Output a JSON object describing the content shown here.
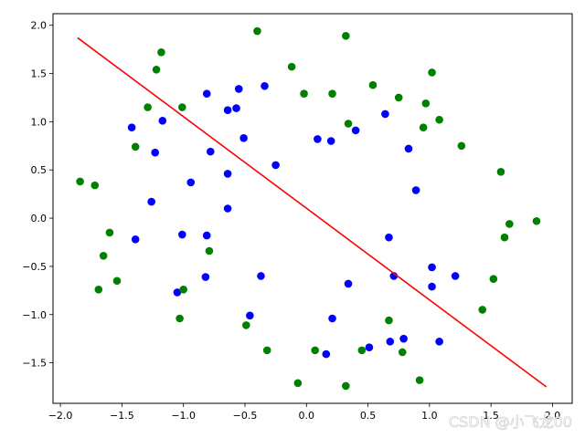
{
  "chart_data": {
    "type": "scatter",
    "xlim": [
      -2.06,
      2.16
    ],
    "ylim": [
      -1.92,
      2.12
    ],
    "grid": false,
    "xticks": [
      {
        "value": -2.0,
        "label": "−2.0"
      },
      {
        "value": -1.5,
        "label": "−1.5"
      },
      {
        "value": -1.0,
        "label": "−1.0"
      },
      {
        "value": -0.5,
        "label": "−0.5"
      },
      {
        "value": 0.0,
        "label": "0.0"
      },
      {
        "value": 0.5,
        "label": "0.5"
      },
      {
        "value": 1.0,
        "label": "1.0"
      },
      {
        "value": 1.5,
        "label": "1.5"
      },
      {
        "value": 2.0,
        "label": "2.0"
      }
    ],
    "yticks": [
      {
        "value": -1.5,
        "label": "−1.5"
      },
      {
        "value": -1.0,
        "label": "−1.0"
      },
      {
        "value": -0.5,
        "label": "−0.5"
      },
      {
        "value": 0.0,
        "label": "0.0"
      },
      {
        "value": 0.5,
        "label": "0.5"
      },
      {
        "value": 1.0,
        "label": "1.0"
      },
      {
        "value": 1.5,
        "label": "1.5"
      },
      {
        "value": 2.0,
        "label": "2.0"
      }
    ],
    "series": [
      {
        "color": "#0000ff",
        "marker": "circle",
        "points": [
          [
            -1.42,
            0.94
          ],
          [
            -1.17,
            1.01
          ],
          [
            -1.23,
            0.68
          ],
          [
            -1.26,
            0.17
          ],
          [
            -1.39,
            -0.22
          ],
          [
            -1.01,
            -0.17
          ],
          [
            -0.94,
            0.37
          ],
          [
            -0.81,
            -0.18
          ],
          [
            -0.78,
            0.69
          ],
          [
            -0.81,
            1.29
          ],
          [
            -0.64,
            1.12
          ],
          [
            -0.57,
            1.14
          ],
          [
            -0.55,
            1.34
          ],
          [
            -0.51,
            0.83
          ],
          [
            -0.64,
            0.46
          ],
          [
            -0.64,
            0.1
          ],
          [
            -0.34,
            1.37
          ],
          [
            -0.25,
            0.55
          ],
          [
            -0.82,
            -0.61
          ],
          [
            -1.05,
            -0.77
          ],
          [
            -0.37,
            -0.6
          ],
          [
            -0.46,
            -1.01
          ],
          [
            0.09,
            0.82
          ],
          [
            0.2,
            0.8
          ],
          [
            0.4,
            0.91
          ],
          [
            0.64,
            1.08
          ],
          [
            0.83,
            0.72
          ],
          [
            0.89,
            0.29
          ],
          [
            0.67,
            -0.2
          ],
          [
            0.71,
            -0.6
          ],
          [
            1.02,
            -0.51
          ],
          [
            1.02,
            -0.71
          ],
          [
            1.21,
            -0.6
          ],
          [
            1.08,
            -1.28
          ],
          [
            0.79,
            -1.25
          ],
          [
            0.68,
            -1.28
          ],
          [
            0.51,
            -1.34
          ],
          [
            0.34,
            -0.68
          ],
          [
            0.21,
            -1.04
          ],
          [
            0.16,
            -1.41
          ]
        ]
      },
      {
        "color": "#008000",
        "marker": "circle",
        "points": [
          [
            -1.18,
            1.72
          ],
          [
            -1.22,
            1.54
          ],
          [
            -1.29,
            1.15
          ],
          [
            -1.01,
            1.15
          ],
          [
            -1.39,
            0.74
          ],
          [
            -1.72,
            0.34
          ],
          [
            -1.84,
            0.38
          ],
          [
            -1.6,
            -0.15
          ],
          [
            -1.65,
            -0.39
          ],
          [
            -1.54,
            -0.65
          ],
          [
            -1.69,
            -0.74
          ],
          [
            -1.0,
            -0.74
          ],
          [
            -0.79,
            -0.34
          ],
          [
            -1.03,
            -1.04
          ],
          [
            -0.49,
            -1.11
          ],
          [
            -0.32,
            -1.37
          ],
          [
            -0.4,
            1.94
          ],
          [
            -0.12,
            1.57
          ],
          [
            -0.02,
            1.29
          ],
          [
            0.21,
            1.29
          ],
          [
            0.32,
            1.89
          ],
          [
            0.34,
            0.98
          ],
          [
            0.54,
            1.38
          ],
          [
            0.75,
            1.25
          ],
          [
            0.97,
            1.19
          ],
          [
            1.02,
            1.51
          ],
          [
            1.08,
            1.02
          ],
          [
            0.95,
            0.94
          ],
          [
            1.26,
            0.75
          ],
          [
            1.58,
            0.48
          ],
          [
            1.65,
            -0.06
          ],
          [
            1.61,
            -0.2
          ],
          [
            1.87,
            -0.03
          ],
          [
            1.52,
            -0.63
          ],
          [
            1.43,
            -0.95
          ],
          [
            0.92,
            -1.68
          ],
          [
            0.78,
            -1.39
          ],
          [
            0.67,
            -1.06
          ],
          [
            0.45,
            -1.37
          ],
          [
            0.32,
            -1.74
          ],
          [
            0.07,
            -1.37
          ],
          [
            -0.07,
            -1.71
          ]
        ]
      }
    ],
    "lines": [
      {
        "color": "#ff0000",
        "x": [
          -1.86,
          1.95
        ],
        "y": [
          1.87,
          -1.75
        ]
      }
    ],
    "watermark": "CSDN @小飞龙00"
  }
}
